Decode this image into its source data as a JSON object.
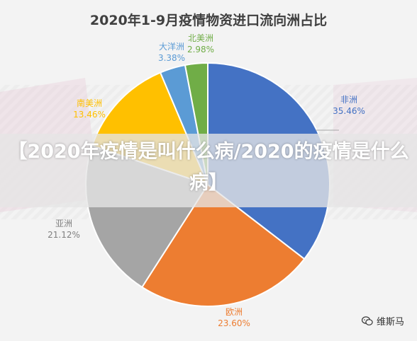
{
  "chart_data": {
    "type": "pie",
    "title": "2020年1-9月疫情物资进口流向洲占比",
    "slices": [
      {
        "name": "非洲",
        "value": 35.46,
        "label": "35.46%",
        "color": "#4472c4",
        "label_color": "#4472c4"
      },
      {
        "name": "欧洲",
        "value": 23.6,
        "label": "23.60%",
        "color": "#ed7d31",
        "label_color": "#ed7d31"
      },
      {
        "name": "亚洲",
        "value": 21.12,
        "label": "21.12%",
        "color": "#a5a5a5",
        "label_color": "#7f7f7f"
      },
      {
        "name": "南美洲",
        "value": 13.46,
        "label": "13.46%",
        "color": "#ffc000",
        "label_color": "#ffc000"
      },
      {
        "name": "大洋洲",
        "value": 3.38,
        "label": "3.38%",
        "color": "#5b9bd5",
        "label_color": "#5b9bd5"
      },
      {
        "name": "北美洲",
        "value": 2.98,
        "label": "2.98%",
        "color": "#70ad47",
        "label_color": "#70ad47"
      }
    ],
    "start_angle": "12 o'clock",
    "direction": "clockwise",
    "legend": "none"
  },
  "overlay": {
    "banner_text": "【2020年疫情是叫什么病/2020的疫情是什么病】",
    "watermark_text": "维斯马",
    "watermark_icon": "wechat-icon"
  }
}
